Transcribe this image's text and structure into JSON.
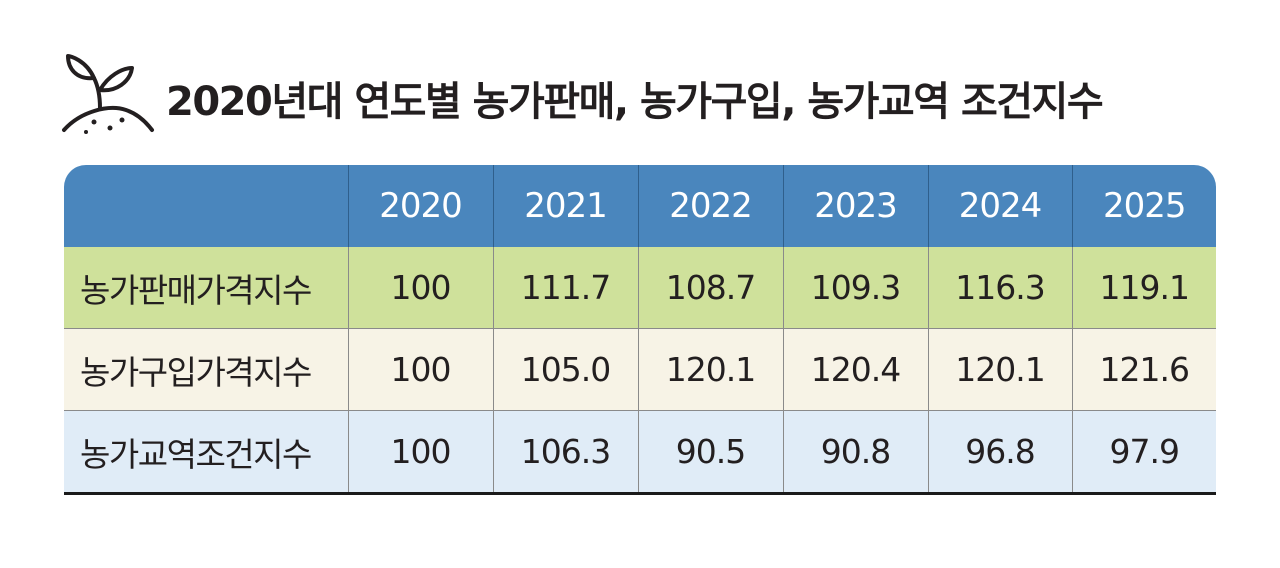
{
  "header": {
    "title": "2020년대 연도별 농가판매, 농가구입, 농가교역 조건지수",
    "icon": "sprout-icon"
  },
  "colors": {
    "header_bg": "#4a86bd",
    "row_sales_bg": "#cfe19b",
    "row_purchase_bg": "#f7f3e6",
    "row_terms_bg": "#e0ecf7"
  },
  "chart_data": {
    "type": "table",
    "title": "2020년대 연도별 농가판매, 농가구입, 농가교역 조건지수",
    "columns": [
      "2020",
      "2021",
      "2022",
      "2023",
      "2024",
      "2025"
    ],
    "rows": [
      {
        "label": "농가판매가격지수",
        "values": [
          "100",
          "111.7",
          "108.7",
          "109.3",
          "116.3",
          "119.1"
        ]
      },
      {
        "label": "농가구입가격지수",
        "values": [
          "100",
          "105.0",
          "120.1",
          "120.4",
          "120.1",
          "121.6"
        ]
      },
      {
        "label": "농가교역조건지수",
        "values": [
          "100",
          "106.3",
          "90.5",
          "90.8",
          "96.8",
          "97.9"
        ]
      }
    ]
  }
}
